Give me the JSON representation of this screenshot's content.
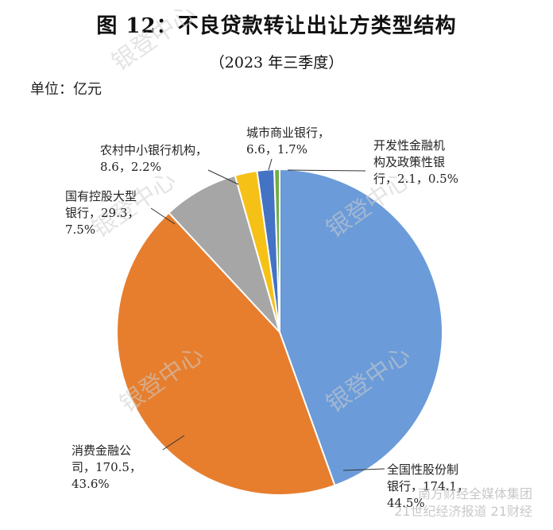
{
  "chart_data": {
    "type": "pie",
    "title": "图 12：不良贷款转让出让方类型结构",
    "subtitle": "（2023 年三季度）",
    "unit": "单位：亿元",
    "slices": [
      {
        "name": "全国性股份制银行",
        "value": 174.1,
        "percent": "44.5%",
        "color": "#6b9bd8",
        "label_lines": [
          "全国性股份制",
          "银行，174.1，",
          "44.5%"
        ]
      },
      {
        "name": "消费金融公司",
        "value": 170.5,
        "percent": "43.6%",
        "color": "#e67e2e",
        "label_lines": [
          "消费金融公",
          "司，170.5，",
          "43.6%"
        ]
      },
      {
        "name": "国有控股大型银行",
        "value": 29.3,
        "percent": "7.5%",
        "color": "#a6a6a6",
        "label_lines": [
          "国有控股大型",
          "银行，29.3，",
          "7.5%"
        ]
      },
      {
        "name": "农村中小银行机构",
        "value": 8.6,
        "percent": "2.2%",
        "color": "#f5c116",
        "label_lines": [
          "农村中小银行机构，",
          "8.6，2.2%"
        ]
      },
      {
        "name": "城市商业银行",
        "value": 6.6,
        "percent": "1.7%",
        "color": "#4472c4",
        "label_lines": [
          "城市商业银行，",
          "6.6，1.7%"
        ]
      },
      {
        "name": "开发性金融机构及政策性银行",
        "value": 2.1,
        "percent": "0.5%",
        "color": "#70ad47",
        "label_lines": [
          "开发性金融机",
          "构及政策性银",
          "行，2.1，0.5%"
        ]
      }
    ]
  },
  "watermark": {
    "text": "银登中心",
    "logo_line1": "南方财经全媒体集团",
    "logo_line2": "21世纪经济报道 21财经"
  }
}
